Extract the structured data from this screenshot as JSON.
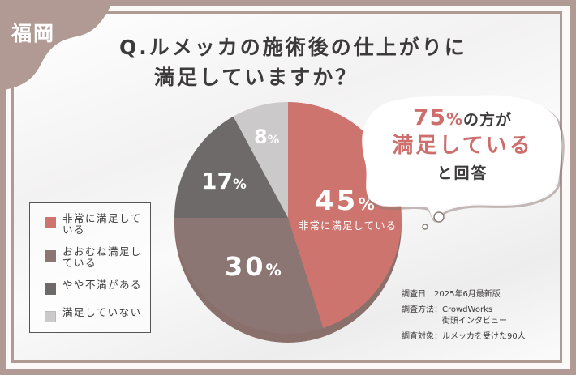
{
  "region_tag": "福岡",
  "question": {
    "line1": "Q.ルメッカの施術後の仕上がりに",
    "line2": "満足していますか？"
  },
  "colors": {
    "frame": "#b09a93",
    "very_satisfied": "#cd746e",
    "mostly_satisfied": "#8c7674",
    "somewhat_dissatisfied": "#6e6a6a",
    "not_satisfied": "#cbc9c9",
    "accent_text": "#cd6e6c"
  },
  "callout": {
    "percent_value": "75",
    "percent_sign": "%",
    "line1_rest": "の方が",
    "line2": "満足している",
    "line3": "と回答"
  },
  "slice_labels": {
    "s45_value": "45",
    "s45_pct": "%",
    "s45_sub": "非常に満足している",
    "s30_value": "30",
    "s30_pct": "%",
    "s17_value": "17",
    "s17_pct": "%",
    "s8_value": "8",
    "s8_pct": "%"
  },
  "legend": [
    {
      "label": "非常に満足している"
    },
    {
      "label": "おおむね満足している"
    },
    {
      "label": "やや不満がある"
    },
    {
      "label": "満足していない"
    }
  ],
  "survey": {
    "date_key": "調査日：",
    "date_val": "2025年6月最新版",
    "method_key": "調査方法：",
    "method_val": "CrowdWorks\n街頭インタビュー",
    "target_key": "調査対象：",
    "target_val": "ルメッカを受けた90人"
  },
  "chart_data": {
    "type": "pie",
    "title": "Q.ルメッカの施術後の仕上がりに満足していますか？",
    "categories": [
      "非常に満足している",
      "おおむね満足している",
      "やや不満がある",
      "満足していない"
    ],
    "values": [
      45,
      30,
      17,
      8
    ],
    "unit": "%",
    "start_angle": "12 o'clock, clockwise",
    "legend_position": "left",
    "annotations": [
      "75%の方が満足していると回答",
      "調査日：2025年6月最新版",
      "調査方法：CrowdWorks 街頭インタビュー",
      "調査対象：ルメッカを受けた90人"
    ]
  }
}
